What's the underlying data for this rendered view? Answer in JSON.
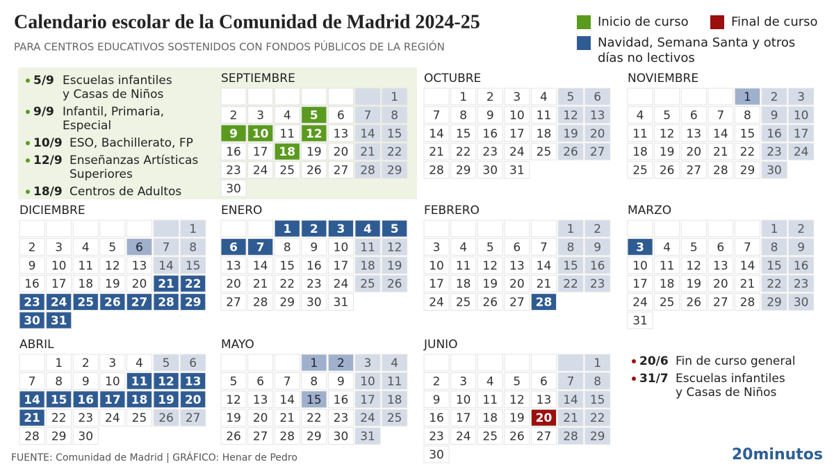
{
  "header": {
    "title": "Calendario escolar de la Comunidad de Madrid 2024-25",
    "subtitle": "PARA CENTROS EDUCATIVOS SOSTENIDOS CON FONDOS PÚBLICOS DE LA REGIÓN"
  },
  "legend": [
    {
      "key": "start",
      "label": [
        "Inicio de curso"
      ],
      "color": "#5a9a1e"
    },
    {
      "key": "end",
      "label": [
        "Final de curso"
      ],
      "color": "#9b0f0f"
    },
    {
      "key": "off",
      "label": [
        "Navidad,  Semana Santa y otros",
        "días no lectivos"
      ],
      "color": "#2f5b93"
    }
  ],
  "colors": {
    "holiday": "#9fb0cc",
    "weekend": "#d5dce8"
  },
  "notes_start": [
    {
      "date": "5/9",
      "lines": [
        "Escuelas infantiles",
        "y Casas de Niños"
      ]
    },
    {
      "date": "9/9",
      "lines": [
        "Infantil, Primaria,",
        "Especial"
      ]
    },
    {
      "date": "10/9",
      "lines": [
        "ESO, Bachillerato, FP"
      ]
    },
    {
      "date": "12/9",
      "lines": [
        "Enseñanzas Artísticas",
        "Superiores"
      ]
    },
    {
      "date": "18/9",
      "lines": [
        "Centros de Adultos"
      ]
    }
  ],
  "notes_end": [
    {
      "date": "20/6",
      "lines": [
        "Fin de curso general"
      ]
    },
    {
      "date": "31/7",
      "lines": [
        "Escuelas infantiles",
        "y Casas de Niños"
      ]
    }
  ],
  "months": [
    {
      "name": "SEPTIEMBRE",
      "weeks": [
        [
          null,
          null,
          null,
          null,
          null,
          null,
          1
        ],
        [
          2,
          3,
          4,
          5,
          6,
          7,
          8
        ],
        [
          9,
          10,
          11,
          12,
          13,
          14,
          15
        ],
        [
          16,
          17,
          18,
          19,
          20,
          21,
          22
        ],
        [
          23,
          24,
          25,
          26,
          27,
          28,
          29
        ],
        [
          30
        ]
      ],
      "start": [
        5,
        9,
        10,
        12,
        18
      ]
    },
    {
      "name": "OCTUBRE",
      "weeks": [
        [
          null,
          1,
          2,
          3,
          4,
          5,
          6
        ],
        [
          7,
          8,
          9,
          10,
          11,
          12,
          13
        ],
        [
          14,
          15,
          16,
          17,
          18,
          19,
          20
        ],
        [
          21,
          22,
          23,
          24,
          25,
          26,
          27
        ],
        [
          28,
          29,
          30,
          31
        ]
      ]
    },
    {
      "name": "NOVIEMBRE",
      "weeks": [
        [
          null,
          null,
          null,
          null,
          1,
          2,
          3
        ],
        [
          4,
          5,
          6,
          7,
          8,
          9,
          10
        ],
        [
          11,
          12,
          13,
          14,
          15,
          16,
          17
        ],
        [
          18,
          19,
          20,
          21,
          22,
          23,
          24
        ],
        [
          25,
          26,
          27,
          28,
          29,
          30
        ]
      ],
      "holiday": [
        1
      ]
    },
    {
      "name": "DICIEMBRE",
      "weeks": [
        [
          null,
          null,
          null,
          null,
          null,
          null,
          1
        ],
        [
          2,
          3,
          4,
          5,
          6,
          7,
          8
        ],
        [
          9,
          10,
          11,
          12,
          13,
          14,
          15
        ],
        [
          16,
          17,
          18,
          19,
          20,
          21,
          22
        ],
        [
          23,
          24,
          25,
          26,
          27,
          28,
          29
        ],
        [
          30,
          31
        ]
      ],
      "holiday": [
        6
      ],
      "off": [
        21,
        22,
        23,
        24,
        25,
        26,
        27,
        28,
        29,
        30,
        31
      ]
    },
    {
      "name": "ENERO",
      "weeks": [
        [
          null,
          null,
          1,
          2,
          3,
          4,
          5
        ],
        [
          6,
          7,
          8,
          9,
          10,
          11,
          12
        ],
        [
          13,
          14,
          15,
          16,
          17,
          18,
          19
        ],
        [
          20,
          21,
          22,
          23,
          24,
          25,
          26
        ],
        [
          27,
          28,
          29,
          30,
          31
        ]
      ],
      "off": [
        1,
        2,
        3,
        4,
        5,
        6,
        7
      ]
    },
    {
      "name": "FEBRERO",
      "weeks": [
        [
          null,
          null,
          null,
          null,
          null,
          1,
          2
        ],
        [
          3,
          4,
          5,
          6,
          7,
          8,
          9
        ],
        [
          10,
          11,
          12,
          13,
          14,
          15,
          16
        ],
        [
          17,
          18,
          19,
          20,
          21,
          22,
          23
        ],
        [
          24,
          25,
          26,
          27,
          28
        ]
      ],
      "off": [
        28
      ]
    },
    {
      "name": "MARZO",
      "weeks": [
        [
          null,
          null,
          null,
          null,
          null,
          1,
          2
        ],
        [
          3,
          4,
          5,
          6,
          7,
          8,
          9
        ],
        [
          10,
          11,
          12,
          13,
          14,
          15,
          16
        ],
        [
          17,
          18,
          19,
          20,
          21,
          22,
          23
        ],
        [
          24,
          25,
          26,
          27,
          28,
          29,
          30
        ],
        [
          31
        ]
      ],
      "off": [
        3
      ]
    },
    {
      "name": "ABRIL",
      "weeks": [
        [
          null,
          1,
          2,
          3,
          4,
          5,
          6
        ],
        [
          7,
          8,
          9,
          10,
          11,
          12,
          13
        ],
        [
          14,
          15,
          16,
          17,
          18,
          19,
          20
        ],
        [
          21,
          22,
          23,
          24,
          25,
          26,
          27
        ],
        [
          28,
          29,
          30
        ]
      ],
      "off": [
        11,
        12,
        13,
        14,
        15,
        16,
        17,
        18,
        19,
        20,
        21
      ]
    },
    {
      "name": "MAYO",
      "weeks": [
        [
          null,
          null,
          null,
          1,
          2,
          3,
          4
        ],
        [
          5,
          6,
          7,
          8,
          9,
          10,
          11
        ],
        [
          12,
          13,
          14,
          15,
          16,
          17,
          18
        ],
        [
          19,
          20,
          21,
          22,
          23,
          24,
          25
        ],
        [
          26,
          27,
          28,
          29,
          30,
          31
        ]
      ],
      "holiday": [
        1,
        2,
        15
      ]
    },
    {
      "name": "JUNIO",
      "weeks": [
        [
          null,
          null,
          null,
          null,
          null,
          null,
          1
        ],
        [
          2,
          3,
          4,
          5,
          6,
          7,
          8
        ],
        [
          9,
          10,
          11,
          12,
          13,
          14,
          15
        ],
        [
          16,
          17,
          18,
          19,
          20,
          21,
          22
        ],
        [
          23,
          24,
          25,
          26,
          27,
          28,
          29
        ],
        [
          30
        ]
      ],
      "end": [
        20
      ]
    }
  ],
  "footer": {
    "source": "FUENTE: Comunidad de Madrid  |  GRÁFICO: Henar de Pedro",
    "logo": "20minutos"
  }
}
